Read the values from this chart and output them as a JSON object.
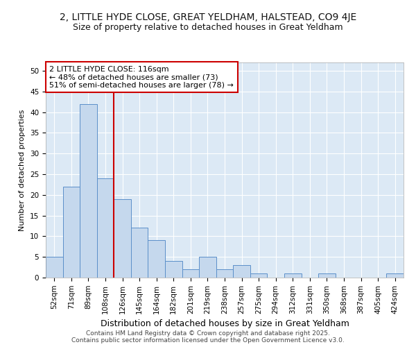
{
  "title_line1": "2, LITTLE HYDE CLOSE, GREAT YELDHAM, HALSTEAD, CO9 4JE",
  "title_line2": "Size of property relative to detached houses in Great Yeldham",
  "xlabel": "Distribution of detached houses by size in Great Yeldham",
  "ylabel": "Number of detached properties",
  "categories": [
    "52sqm",
    "71sqm",
    "89sqm",
    "108sqm",
    "126sqm",
    "145sqm",
    "164sqm",
    "182sqm",
    "201sqm",
    "219sqm",
    "238sqm",
    "257sqm",
    "275sqm",
    "294sqm",
    "312sqm",
    "331sqm",
    "350sqm",
    "368sqm",
    "387sqm",
    "405sqm",
    "424sqm"
  ],
  "values": [
    5,
    22,
    42,
    24,
    19,
    12,
    9,
    4,
    2,
    5,
    2,
    3,
    1,
    0,
    1,
    0,
    1,
    0,
    0,
    0,
    1
  ],
  "bar_color": "#c5d8ed",
  "bar_edge_color": "#5b8fc9",
  "plot_bg_color": "#dce9f5",
  "fig_bg_color": "#ffffff",
  "grid_color": "#ffffff",
  "annotation_line1": "2 LITTLE HYDE CLOSE: 116sqm",
  "annotation_line2": "← 48% of detached houses are smaller (73)",
  "annotation_line3": "51% of semi-detached houses are larger (78) →",
  "annotation_box_facecolor": "#ffffff",
  "annotation_box_edgecolor": "#cc0000",
  "vline_x_index": 3.5,
  "vline_color": "#cc0000",
  "ylim": [
    0,
    52
  ],
  "yticks": [
    0,
    5,
    10,
    15,
    20,
    25,
    30,
    35,
    40,
    45,
    50
  ],
  "footer_line1": "Contains HM Land Registry data © Crown copyright and database right 2025.",
  "footer_line2": "Contains public sector information licensed under the Open Government Licence v3.0.",
  "title_fontsize": 10,
  "subtitle_fontsize": 9,
  "ylabel_fontsize": 8,
  "xlabel_fontsize": 9,
  "tick_fontsize": 7.5,
  "annotation_fontsize": 8,
  "footer_fontsize": 6.5
}
